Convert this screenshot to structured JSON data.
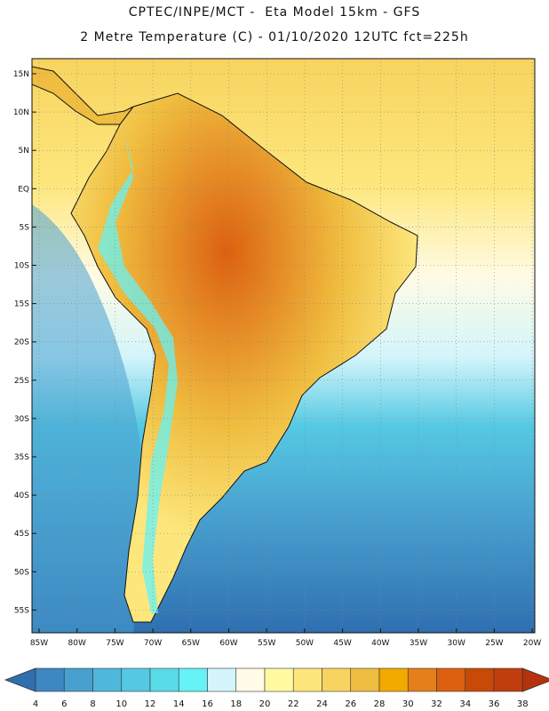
{
  "title_line1": "CPTEC/INPE/MCT -  Eta Model 15km - GFS",
  "title_line2": "2 Metre Temperature (C) - 01/10/2020 12UTC fct=225h",
  "lat_labels": [
    "15N",
    "10N",
    "5N",
    "EQ",
    "5S",
    "10S",
    "15S",
    "20S",
    "25S",
    "30S",
    "35S",
    "40S",
    "45S",
    "50S",
    "55S"
  ],
  "lon_labels": [
    "85W",
    "80W",
    "75W",
    "70W",
    "65W",
    "60W",
    "55W",
    "50W",
    "45W",
    "40W",
    "35W",
    "30W",
    "25W",
    "20W"
  ],
  "colorbar": {
    "labels": [
      "4",
      "6",
      "8",
      "10",
      "12",
      "14",
      "16",
      "18",
      "20",
      "22",
      "24",
      "26",
      "28",
      "30",
      "32",
      "34",
      "36",
      "38"
    ],
    "colors": [
      "#2f6fb0",
      "#3d87c2",
      "#48a0cf",
      "#4fb7dc",
      "#55c9e3",
      "#5adbe9",
      "#66f2f6",
      "#d3f5fb",
      "#fffbe6",
      "#fff9a0",
      "#fde77d",
      "#f7d45f",
      "#efbd3f",
      "#f2a900",
      "#e57f1a",
      "#dc6010",
      "#c84a06",
      "#c03e0e",
      "#b5320c"
    ]
  },
  "map_colors": {
    "ocean_cold": "#2f6fb0",
    "ocean_mid": "#48a0cf",
    "ocean_cool": "#55c9e3",
    "ocean_light": "#d3f5fb",
    "ocean_pale": "#fffbe6",
    "ocean_warm": "#fde77d",
    "ocean_warm2": "#f7d45f",
    "land_hot": "#dc6010",
    "land_warm": "#efbd3f",
    "andes": "#66f2f6"
  }
}
